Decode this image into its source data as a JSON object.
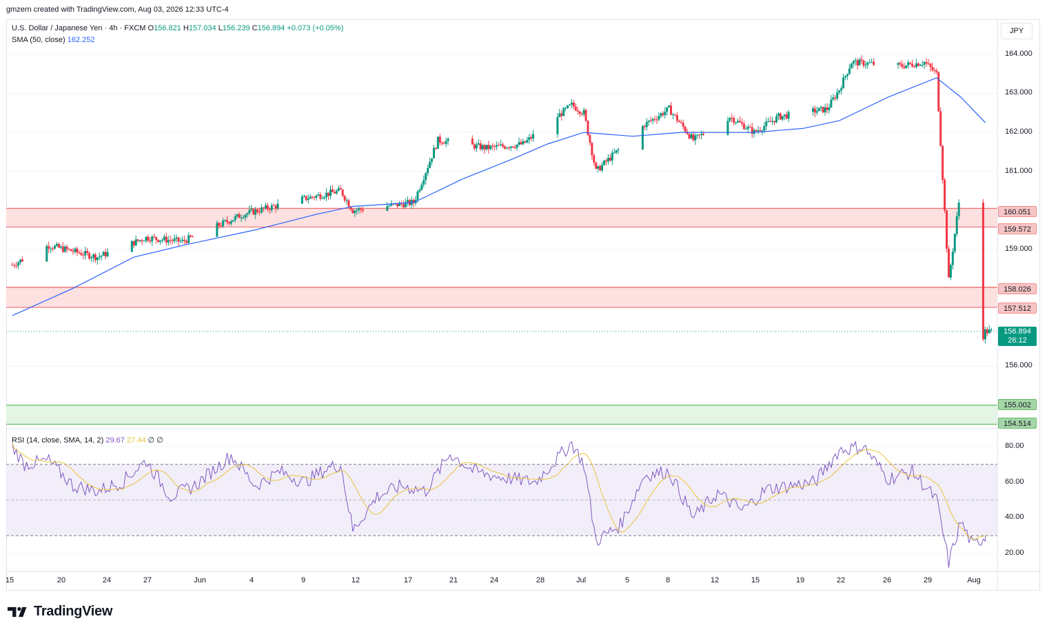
{
  "header": {
    "attribution": "gmzern created with TradingView.com, Aug 03, 2026 12:33 UTC-4"
  },
  "currency_button": {
    "label": "JPY"
  },
  "legend": {
    "symbol": "U.S. Dollar / Japanese Yen · 4h · FXCM",
    "o_label": "O",
    "o_value": "156.821",
    "h_label": "H",
    "h_value": "157.034",
    "l_label": "L",
    "l_value": "156.239",
    "c_label": "C",
    "c_value": "156.894",
    "change": "+0.073 (+0.05%)",
    "sma_label": "SMA (50, close)",
    "sma_value": "162.252",
    "rsi_label": "RSI (14, close, SMA, 14, 2)",
    "rsi_value": "29.67",
    "rsi_ma_value": "27.44",
    "rsi_extra1": "∅",
    "rsi_extra2": "∅"
  },
  "price_axis": {
    "ticks": [
      "164.000",
      "163.000",
      "162.000",
      "161.000",
      "159.000",
      "156.000"
    ]
  },
  "rsi_axis": {
    "ticks": [
      "80.00",
      "60.00",
      "40.00",
      "20.00"
    ]
  },
  "zone_labels": {
    "z1_top": "160.051",
    "z1_bottom": "159.572",
    "z2_top": "158.026",
    "z2_bottom": "157.512",
    "z3_top": "155.002",
    "z3_bottom": "154.514"
  },
  "last_price": {
    "value": "156.894",
    "countdown": "26:12"
  },
  "time_axis": {
    "ticks": [
      "15",
      "20",
      "24",
      "27",
      "Jun",
      "4",
      "9",
      "12",
      "17",
      "21",
      "24",
      "28",
      "Jul",
      "5",
      "8",
      "12",
      "15",
      "19",
      "22",
      "26",
      "29",
      "Aug"
    ]
  },
  "brand": {
    "name": "TradingView"
  },
  "colors": {
    "up": "#089981",
    "down": "#f23645",
    "sma": "#2962ff",
    "rsi": "#7e57c2",
    "rsi_ma": "#e8c43a",
    "resistance_zone": "#fde0e0",
    "support_zone": "#e3f5e4"
  },
  "chart_data": {
    "type": "candlestick",
    "timeframe": "4h",
    "ylim": [
      154.4,
      164.9
    ],
    "price_ticks": [
      164,
      163,
      162,
      161,
      159,
      156
    ],
    "zones": [
      {
        "kind": "resistance",
        "top": 160.051,
        "bottom": 159.572
      },
      {
        "kind": "resistance",
        "top": 158.026,
        "bottom": 157.512
      },
      {
        "kind": "support",
        "top": 155.002,
        "bottom": 154.514
      }
    ],
    "last_close": 156.894,
    "anchors": [
      {
        "date": "2026-05-15",
        "price": 158.6
      },
      {
        "date": "2026-05-18",
        "price": 159.1
      },
      {
        "date": "2026-05-22",
        "price": 158.8
      },
      {
        "date": "2026-05-26",
        "price": 159.3
      },
      {
        "date": "2026-05-29",
        "price": 159.2
      },
      {
        "date": "2026-06-03",
        "price": 159.9
      },
      {
        "date": "2026-06-08",
        "price": 160.3
      },
      {
        "date": "2026-06-11",
        "price": 160.5
      },
      {
        "date": "2026-06-12",
        "price": 160.0
      },
      {
        "date": "2026-06-17",
        "price": 160.2
      },
      {
        "date": "2026-06-19",
        "price": 161.8
      },
      {
        "date": "2026-06-23",
        "price": 161.6
      },
      {
        "date": "2026-06-26",
        "price": 161.7
      },
      {
        "date": "2026-06-30",
        "price": 162.7
      },
      {
        "date": "2026-07-01",
        "price": 162.5
      },
      {
        "date": "2026-07-02",
        "price": 161.0
      },
      {
        "date": "2026-07-06",
        "price": 162.2
      },
      {
        "date": "2026-07-08",
        "price": 162.6
      },
      {
        "date": "2026-07-10",
        "price": 161.8
      },
      {
        "date": "2026-07-13",
        "price": 162.4
      },
      {
        "date": "2026-07-15",
        "price": 162.0
      },
      {
        "date": "2026-07-17",
        "price": 162.4
      },
      {
        "date": "2026-07-21",
        "price": 162.6
      },
      {
        "date": "2026-07-22",
        "price": 163.1
      },
      {
        "date": "2026-07-23",
        "price": 163.8
      },
      {
        "date": "2026-07-27",
        "price": 163.7
      },
      {
        "date": "2026-07-29",
        "price": 163.8
      },
      {
        "date": "2026-07-30",
        "price": 163.5
      },
      {
        "date": "2026-07-31",
        "price": 158.2
      },
      {
        "date": "2026-08-01",
        "price": 160.6
      },
      {
        "date": "2026-08-02",
        "price": 156.2
      },
      {
        "date": "2026-08-03",
        "price": 156.894
      }
    ],
    "sma_50": [
      {
        "date": "2026-05-15",
        "value": 157.3
      },
      {
        "date": "2026-05-20",
        "value": 158.0
      },
      {
        "date": "2026-05-25",
        "value": 158.8
      },
      {
        "date": "2026-05-29",
        "value": 159.1
      },
      {
        "date": "2026-06-04",
        "value": 159.5
      },
      {
        "date": "2026-06-09",
        "value": 159.9
      },
      {
        "date": "2026-06-12",
        "value": 160.1
      },
      {
        "date": "2026-06-17",
        "value": 160.2
      },
      {
        "date": "2026-06-21",
        "value": 160.8
      },
      {
        "date": "2026-06-25",
        "value": 161.3
      },
      {
        "date": "2026-06-28",
        "value": 161.7
      },
      {
        "date": "2026-07-01",
        "value": 162.0
      },
      {
        "date": "2026-07-05",
        "value": 161.9
      },
      {
        "date": "2026-07-09",
        "value": 162.0
      },
      {
        "date": "2026-07-15",
        "value": 162.0
      },
      {
        "date": "2026-07-19",
        "value": 162.1
      },
      {
        "date": "2026-07-22",
        "value": 162.3
      },
      {
        "date": "2026-07-26",
        "value": 162.9
      },
      {
        "date": "2026-07-30",
        "value": 163.4
      },
      {
        "date": "2026-08-01",
        "value": 162.9
      },
      {
        "date": "2026-08-03",
        "value": 162.252
      }
    ],
    "rsi": {
      "period": 14,
      "ma_period": 14,
      "last": 29.67,
      "last_ma": 27.44,
      "levels": [
        70,
        50,
        30
      ],
      "ylim": [
        10,
        90
      ],
      "ticks": [
        80,
        60,
        40,
        20
      ],
      "points": [
        {
          "date": "2026-05-15",
          "value": 80
        },
        {
          "date": "2026-05-16",
          "value": 70
        },
        {
          "date": "2026-05-18",
          "value": 72
        },
        {
          "date": "2026-05-20",
          "value": 58
        },
        {
          "date": "2026-05-22",
          "value": 55
        },
        {
          "date": "2026-05-24",
          "value": 60
        },
        {
          "date": "2026-05-26",
          "value": 72
        },
        {
          "date": "2026-05-28",
          "value": 52
        },
        {
          "date": "2026-05-30",
          "value": 58
        },
        {
          "date": "2026-06-02",
          "value": 75
        },
        {
          "date": "2026-06-04",
          "value": 58
        },
        {
          "date": "2026-06-06",
          "value": 66
        },
        {
          "date": "2026-06-08",
          "value": 60
        },
        {
          "date": "2026-06-10",
          "value": 68
        },
        {
          "date": "2026-06-11",
          "value": 70
        },
        {
          "date": "2026-06-12",
          "value": 33
        },
        {
          "date": "2026-06-14",
          "value": 52
        },
        {
          "date": "2026-06-16",
          "value": 58
        },
        {
          "date": "2026-06-18",
          "value": 55
        },
        {
          "date": "2026-06-20",
          "value": 76
        },
        {
          "date": "2026-06-22",
          "value": 66
        },
        {
          "date": "2026-06-24",
          "value": 63
        },
        {
          "date": "2026-06-27",
          "value": 60
        },
        {
          "date": "2026-06-30",
          "value": 82
        },
        {
          "date": "2026-07-01",
          "value": 70
        },
        {
          "date": "2026-07-02",
          "value": 27
        },
        {
          "date": "2026-07-04",
          "value": 36
        },
        {
          "date": "2026-07-06",
          "value": 64
        },
        {
          "date": "2026-07-08",
          "value": 66
        },
        {
          "date": "2026-07-10",
          "value": 40
        },
        {
          "date": "2026-07-12",
          "value": 54
        },
        {
          "date": "2026-07-14",
          "value": 44
        },
        {
          "date": "2026-07-16",
          "value": 56
        },
        {
          "date": "2026-07-18",
          "value": 58
        },
        {
          "date": "2026-07-20",
          "value": 60
        },
        {
          "date": "2026-07-22",
          "value": 78
        },
        {
          "date": "2026-07-24",
          "value": 80
        },
        {
          "date": "2026-07-26",
          "value": 62
        },
        {
          "date": "2026-07-28",
          "value": 66
        },
        {
          "date": "2026-07-30",
          "value": 50
        },
        {
          "date": "2026-07-31",
          "value": 15
        },
        {
          "date": "2026-08-01",
          "value": 38
        },
        {
          "date": "2026-08-02",
          "value": 24
        },
        {
          "date": "2026-08-03",
          "value": 29.67
        }
      ]
    }
  }
}
